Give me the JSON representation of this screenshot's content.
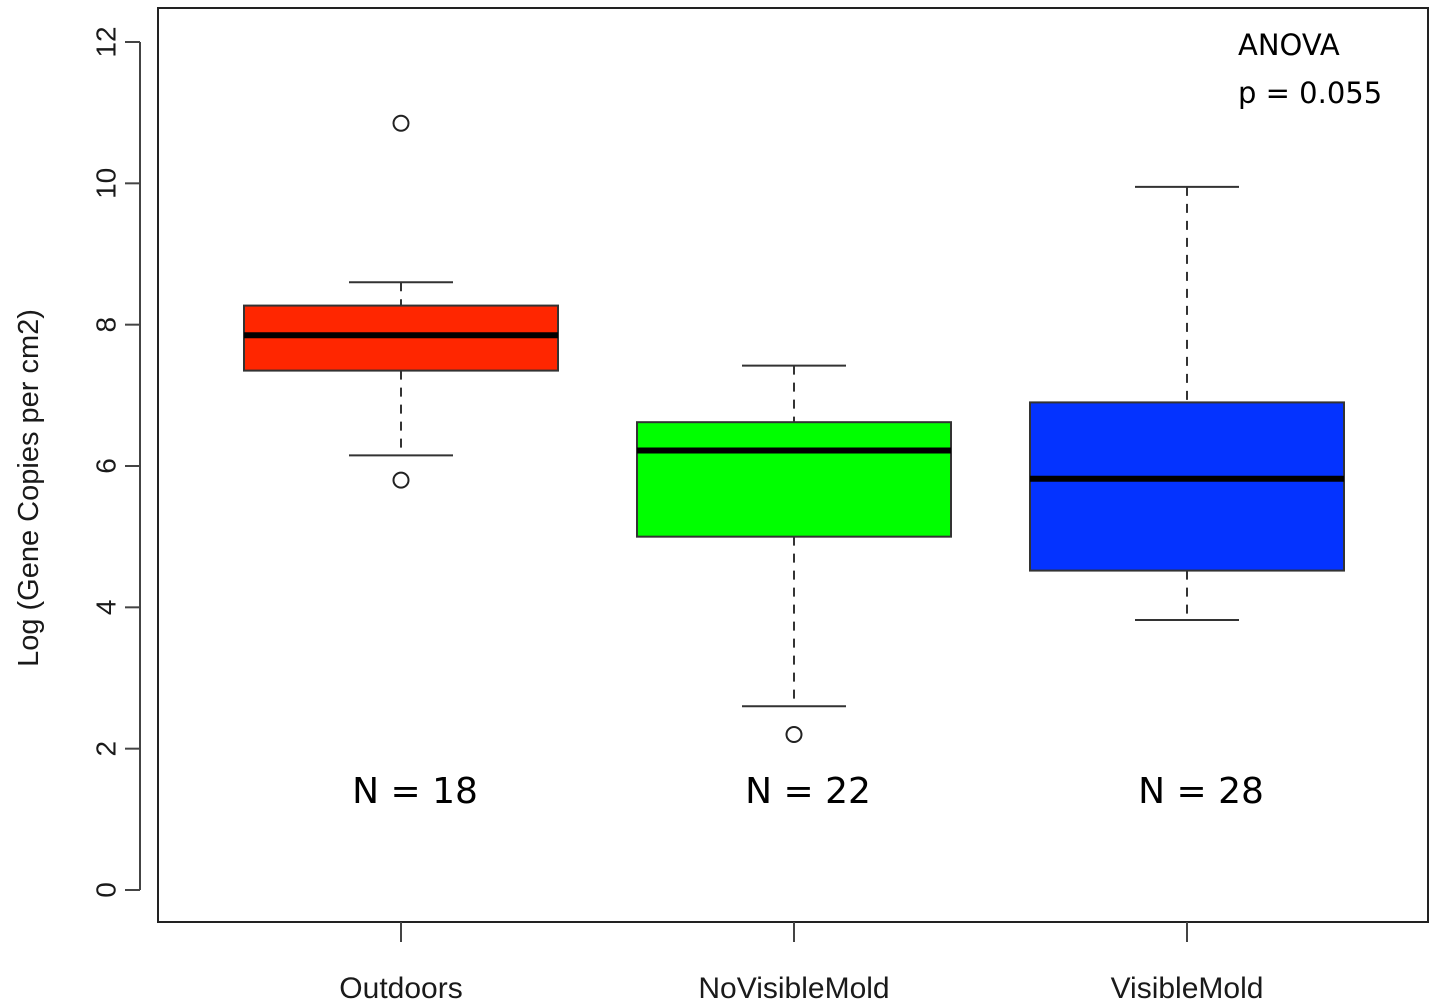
{
  "chart_data": {
    "type": "box",
    "ylabel": "Log (Gene Copies per cm2)",
    "ylim": [
      0,
      12
    ],
    "yticks": [
      0,
      2,
      4,
      6,
      8,
      10,
      12
    ],
    "categories": [
      "Outdoors",
      "NoVisibleMold",
      "VisibleMold"
    ],
    "boxes": [
      {
        "category": "Outdoors",
        "color": "#ff2600",
        "whisker_low": 6.15,
        "q1": 7.35,
        "median": 7.85,
        "q3": 8.27,
        "whisker_high": 8.6,
        "outliers": [
          10.85,
          5.8
        ],
        "n_label": "N = 18"
      },
      {
        "category": "NoVisibleMold",
        "color": "#00ff00",
        "whisker_low": 2.6,
        "q1": 5.0,
        "median": 6.22,
        "q3": 6.62,
        "whisker_high": 7.42,
        "outliers": [
          2.2
        ],
        "n_label": "N = 22"
      },
      {
        "category": "VisibleMold",
        "color": "#0433ff",
        "whisker_low": 3.82,
        "q1": 4.52,
        "median": 5.82,
        "q3": 6.9,
        "whisker_high": 9.95,
        "outliers": [],
        "n_label": "N = 28"
      }
    ],
    "annotations": [
      "ANOVA",
      "p = 0.055"
    ],
    "grid": false,
    "legend": "none"
  }
}
